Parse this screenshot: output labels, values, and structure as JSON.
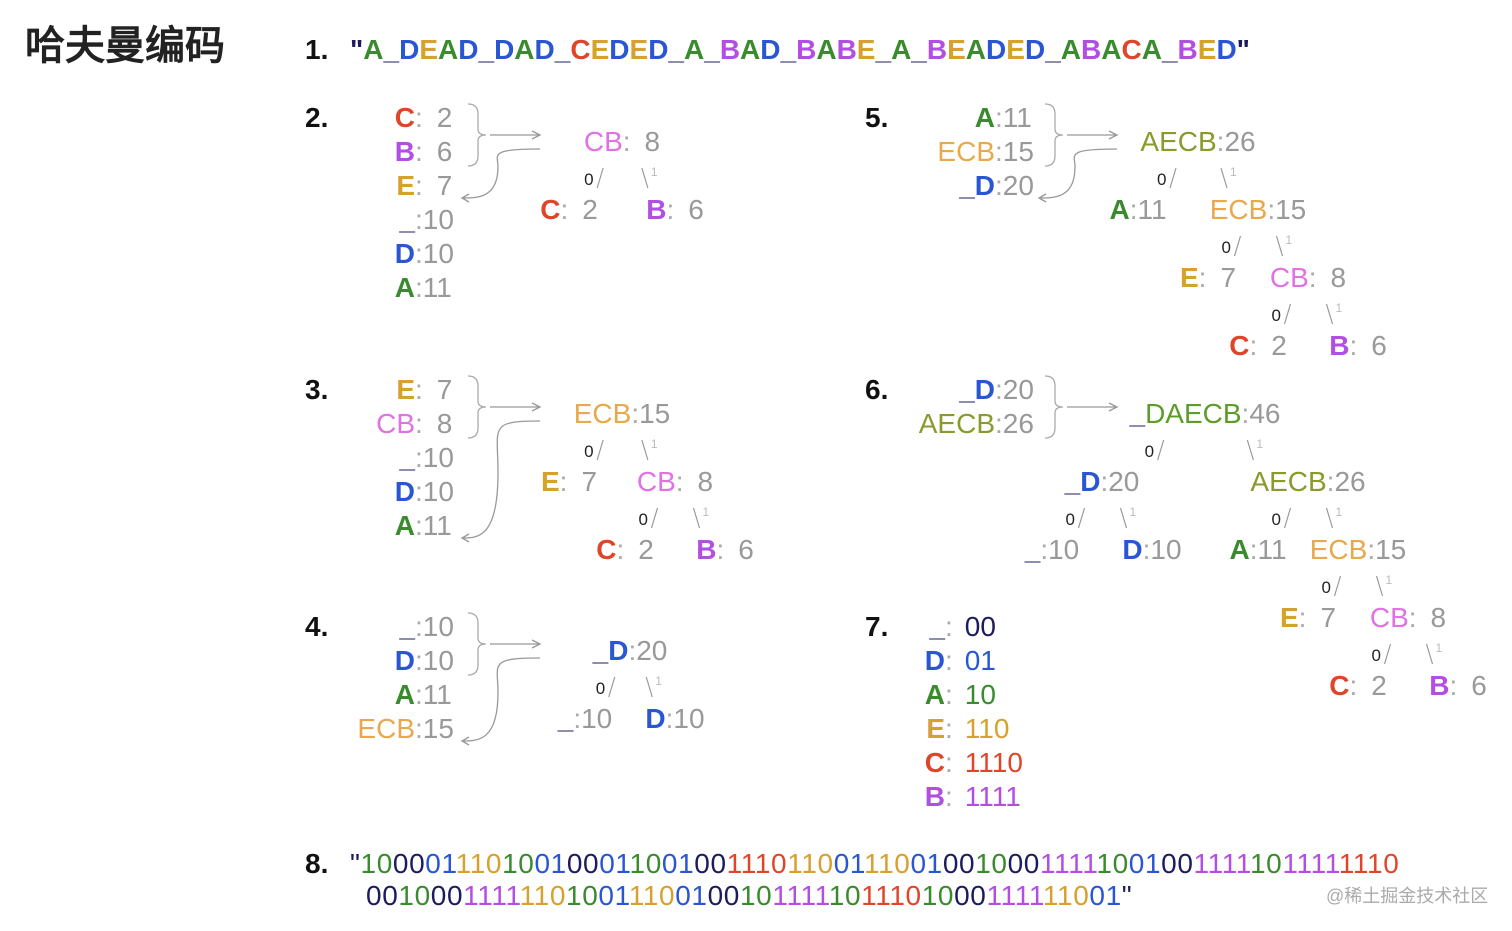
{
  "title": "哈夫曼编码",
  "separator": ":",
  "edge_labels": [
    "0",
    "1"
  ],
  "watermark": "@稀土掘金技术社区",
  "label_colors": {
    "A": "#3a8a2e",
    "D": "#2a56d4",
    "E": "#d6a12e",
    "C": "#e0452a",
    "B": "#b24ee2",
    "_": "#1c1c5c",
    "CB": "#e072e4",
    "ECB": "#eaa84c",
    "AECB": "#8a9a2c",
    "DAECB": "#5e9c2a"
  },
  "steps": [
    {
      "number": "1.",
      "text": "\"A_DEAD_DAD_CEDED_A_BAD_BABE_A_BEADED_ABACA_BED\""
    },
    {
      "number": "2.",
      "list": [
        {
          "symbol": "C",
          "count": 2
        },
        {
          "symbol": "B",
          "count": 6
        },
        {
          "symbol": "E",
          "count": 7
        },
        {
          "symbol": "_",
          "count": 10
        },
        {
          "symbol": "D",
          "count": 10
        },
        {
          "symbol": "A",
          "count": 11
        }
      ],
      "tree": {
        "symbol": "CB",
        "count": 8,
        "children": [
          {
            "symbol": "C",
            "count": 2
          },
          {
            "symbol": "B",
            "count": 6
          }
        ]
      }
    },
    {
      "number": "3.",
      "list": [
        {
          "symbol": "E",
          "count": 7
        },
        {
          "symbol": "CB",
          "count": 8
        },
        {
          "symbol": "_",
          "count": 10
        },
        {
          "symbol": "D",
          "count": 10
        },
        {
          "symbol": "A",
          "count": 11
        }
      ],
      "tree": {
        "symbol": "ECB",
        "count": 15,
        "children": [
          {
            "symbol": "E",
            "count": 7
          },
          {
            "symbol": "CB",
            "count": 8,
            "children": [
              {
                "symbol": "C",
                "count": 2
              },
              {
                "symbol": "B",
                "count": 6
              }
            ]
          }
        ]
      }
    },
    {
      "number": "4.",
      "list": [
        {
          "symbol": "_",
          "count": 10
        },
        {
          "symbol": "D",
          "count": 10
        },
        {
          "symbol": "A",
          "count": 11
        },
        {
          "symbol": "ECB",
          "count": 15
        }
      ],
      "tree": {
        "symbol": "_D",
        "count": 20,
        "children": [
          {
            "symbol": "_",
            "count": 10
          },
          {
            "symbol": "D",
            "count": 10
          }
        ]
      }
    },
    {
      "number": "5.",
      "list": [
        {
          "symbol": "A",
          "count": 11
        },
        {
          "symbol": "ECB",
          "count": 15
        },
        {
          "symbol": "_D",
          "count": 20
        }
      ],
      "tree": {
        "symbol": "AECB",
        "count": 26,
        "children": [
          {
            "symbol": "A",
            "count": 11
          },
          {
            "symbol": "ECB",
            "count": 15,
            "children": [
              {
                "symbol": "E",
                "count": 7
              },
              {
                "symbol": "CB",
                "count": 8,
                "children": [
                  {
                    "symbol": "C",
                    "count": 2
                  },
                  {
                    "symbol": "B",
                    "count": 6
                  }
                ]
              }
            ]
          }
        ]
      }
    },
    {
      "number": "6.",
      "list": [
        {
          "symbol": "_D",
          "count": 20
        },
        {
          "symbol": "AECB",
          "count": 26
        }
      ],
      "tree": {
        "symbol": "_DAECB",
        "count": 46,
        "children": [
          {
            "symbol": "_D",
            "count": 20,
            "children": [
              {
                "symbol": "_",
                "count": 10
              },
              {
                "symbol": "D",
                "count": 10
              }
            ]
          },
          {
            "symbol": "AECB",
            "count": 26,
            "children": [
              {
                "symbol": "A",
                "count": 11
              },
              {
                "symbol": "ECB",
                "count": 15,
                "children": [
                  {
                    "symbol": "E",
                    "count": 7
                  },
                  {
                    "symbol": "CB",
                    "count": 8,
                    "children": [
                      {
                        "symbol": "C",
                        "count": 2
                      },
                      {
                        "symbol": "B",
                        "count": 6
                      }
                    ]
                  }
                ]
              }
            ]
          }
        ]
      }
    },
    {
      "number": "7.",
      "codes": [
        {
          "symbol": "_",
          "code": "00"
        },
        {
          "symbol": "D",
          "code": "01"
        },
        {
          "symbol": "A",
          "code": "10"
        },
        {
          "symbol": "E",
          "code": "110"
        },
        {
          "symbol": "C",
          "code": "1110"
        },
        {
          "symbol": "B",
          "code": "1111"
        }
      ]
    },
    {
      "number": "8.",
      "lines": [
        "\"1000011101001000110010011101100111001001000111110010011111011111110",
        "0010001111110100111001001011111011101000111111001\""
      ]
    }
  ]
}
